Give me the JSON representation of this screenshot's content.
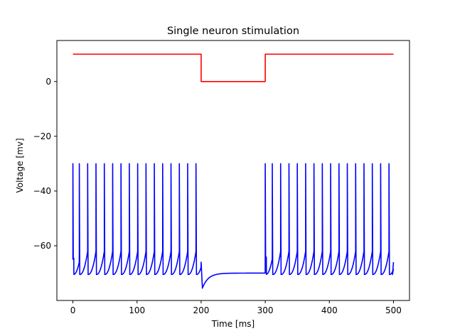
{
  "chart_data": {
    "type": "line",
    "title": "Single neuron stimulation",
    "xlabel": "Time [ms]",
    "ylabel": "Voltage [mv]",
    "xlim": [
      -25,
      525
    ],
    "ylim": [
      -80,
      15
    ],
    "xticks": [
      0,
      100,
      200,
      300,
      400,
      500
    ],
    "yticks": [
      0,
      -20,
      -40,
      -60
    ],
    "ytick_labels": [
      "0",
      "−20",
      "−40",
      "−60"
    ],
    "grid": false,
    "series": [
      {
        "role": "stimulus",
        "color": "#ff0000",
        "x": [
          0,
          200,
          200,
          300,
          300,
          500
        ],
        "y": [
          10,
          10,
          0,
          0,
          10,
          10
        ]
      },
      {
        "role": "membrane-voltage",
        "color": "#0000ff",
        "spike_times": [
          0,
          10,
          23,
          36,
          49,
          62,
          75,
          88,
          101,
          114,
          127,
          140,
          153,
          166,
          179,
          192,
          300,
          311,
          324,
          337,
          350,
          363,
          376,
          389,
          402,
          415,
          428,
          441,
          454,
          467,
          480,
          493
        ],
        "spike_peak": -30,
        "reset_voltage": -70.5,
        "pre_spike_voltage": -62,
        "rest_voltage": -70,
        "hyperpolarization_min": -75.5,
        "stim_off_interval": [
          200,
          300
        ],
        "end_time": 500,
        "end_voltage": -66
      }
    ]
  }
}
